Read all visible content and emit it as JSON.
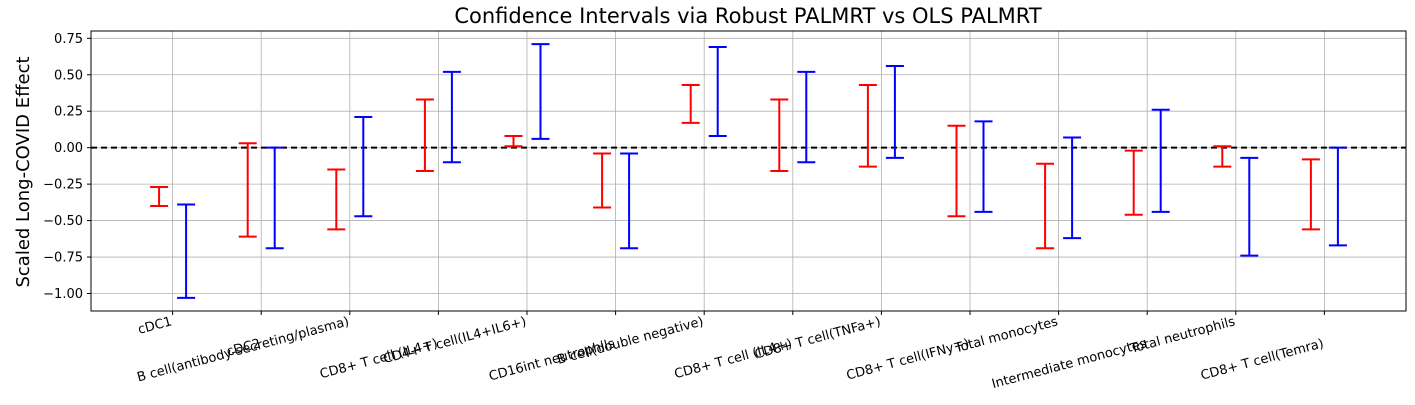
{
  "chart_data": {
    "type": "errorbar",
    "title": "Confidence Intervals via Robust PALMRT vs OLS PALMRT",
    "xlabel": "",
    "ylabel": "Scaled Long-COVID Effect",
    "ylim": [
      -1.12,
      0.8
    ],
    "yticks": [
      0.75,
      0.5,
      0.25,
      0.0,
      -0.25,
      -0.5,
      -0.75,
      -1.0
    ],
    "ytick_labels": [
      "0.75",
      "0.50",
      "0.25",
      "0.00",
      "−0.25",
      "−0.50",
      "−0.75",
      "−1.00"
    ],
    "reference_line": 0.0,
    "grid": true,
    "categories": [
      "cDC1",
      "cDC2",
      "B cell(antibody-secreting/plasma)",
      "CD8+ T cell (IL4+)",
      "CD4+ T cell(IL4+IL6+)",
      "CD16int neutrophils",
      "B cell(double negative)",
      "CD8+ T cell (IL4+)",
      "CD8+ T cell(TNFa+)",
      "CD8+ T cell(IFNy+)",
      "Total monocytes",
      "Intermediate monocytes",
      "Total neutrophils",
      "CD8+ T cell(Temra)"
    ],
    "series": [
      {
        "color": "#ff0000",
        "intervals": [
          [
            -0.4,
            -0.27
          ],
          [
            -0.61,
            0.03
          ],
          [
            -0.56,
            -0.15
          ],
          [
            -0.16,
            0.33
          ],
          [
            0.01,
            0.08
          ],
          [
            -0.41,
            -0.04
          ],
          [
            0.17,
            0.43
          ],
          [
            -0.16,
            0.33
          ],
          [
            -0.13,
            0.43
          ],
          [
            -0.47,
            0.15
          ],
          [
            -0.69,
            -0.11
          ],
          [
            -0.46,
            -0.02
          ],
          [
            -0.13,
            0.01
          ],
          [
            -0.56,
            -0.08
          ]
        ]
      },
      {
        "color": "#0000ff",
        "intervals": [
          [
            -1.03,
            -0.39
          ],
          [
            -0.69,
            0.0
          ],
          [
            -0.47,
            0.21
          ],
          [
            -0.1,
            0.52
          ],
          [
            0.06,
            0.71
          ],
          [
            -0.69,
            -0.04
          ],
          [
            0.08,
            0.69
          ],
          [
            -0.1,
            0.52
          ],
          [
            -0.07,
            0.56
          ],
          [
            -0.44,
            0.18
          ],
          [
            -0.62,
            0.07
          ],
          [
            -0.44,
            0.26
          ],
          [
            -0.74,
            -0.07
          ],
          [
            -0.67,
            0.0
          ]
        ]
      }
    ]
  }
}
